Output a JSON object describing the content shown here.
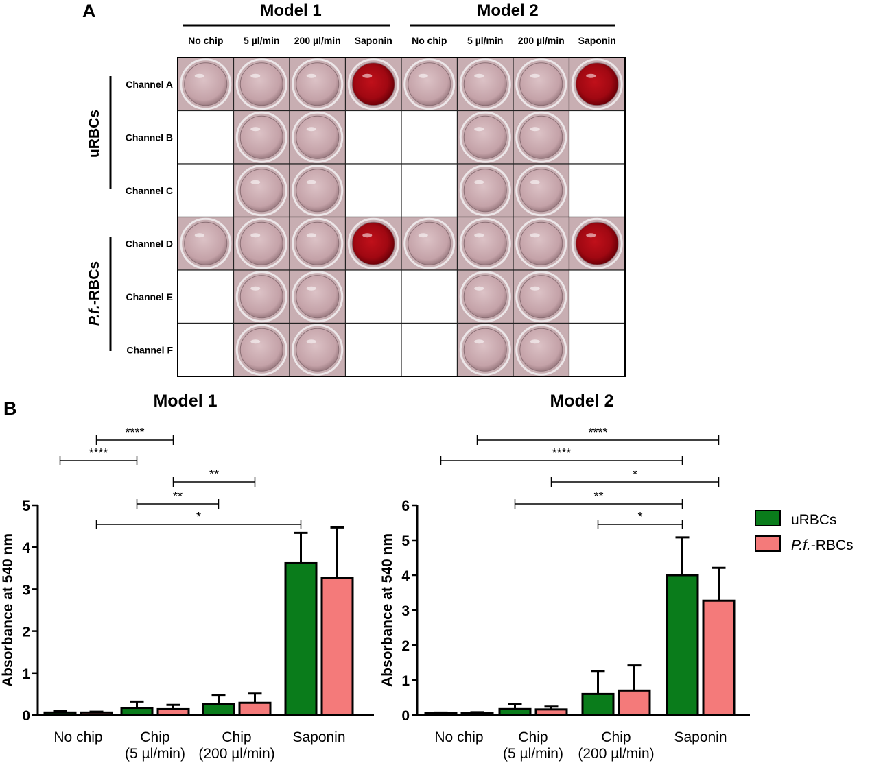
{
  "panel_a": {
    "label": "A",
    "models": [
      "Model 1",
      "Model 2"
    ],
    "columns": [
      "No chip",
      "5 µl/min",
      "200 µl/min",
      "Saponin"
    ],
    "groups": [
      {
        "label": "uRBCs",
        "italic_prefix": "",
        "rows": [
          "Channel A",
          "Channel B",
          "Channel C"
        ]
      },
      {
        "label": "-RBCs",
        "italic_prefix": "P.f.",
        "rows": [
          "Channel D",
          "Channel E",
          "Channel F"
        ]
      }
    ],
    "well_grid": {
      "legend": "0 = empty, 1 = pale well, 2 = red (hemolysed) well",
      "rows": [
        [
          1,
          1,
          1,
          2,
          1,
          1,
          1,
          2
        ],
        [
          0,
          1,
          1,
          0,
          0,
          1,
          1,
          0
        ],
        [
          0,
          1,
          1,
          0,
          0,
          1,
          1,
          0
        ],
        [
          1,
          1,
          1,
          2,
          1,
          1,
          1,
          2
        ],
        [
          0,
          1,
          1,
          0,
          0,
          1,
          1,
          0
        ],
        [
          0,
          1,
          1,
          0,
          0,
          1,
          1,
          0
        ]
      ]
    }
  },
  "panel_b": {
    "label": "B"
  },
  "legend": [
    {
      "name": "uRBCs",
      "italic_prefix": "",
      "color": "#0a7c1b"
    },
    {
      "name": "-RBCs",
      "italic_prefix": "P.f.",
      "color": "#f47a7a"
    }
  ],
  "chart_data": [
    {
      "type": "bar",
      "title": "Model 1",
      "ylabel": "Absorbance at 540 nm",
      "ylim": [
        0,
        5
      ],
      "yticks": [
        0,
        1,
        2,
        3,
        4,
        5
      ],
      "categories": [
        {
          "line1": "No chip",
          "line2": ""
        },
        {
          "line1": "Chip",
          "line2": "(5 µl/min)"
        },
        {
          "line1": "Chip",
          "line2": "(200 µl/min)"
        },
        {
          "line1": "Saponin",
          "line2": ""
        }
      ],
      "series": [
        {
          "name": "uRBCs",
          "values": [
            0.06,
            0.17,
            0.26,
            3.62
          ],
          "errors": [
            0.03,
            0.15,
            0.22,
            0.72
          ]
        },
        {
          "name": "P.f.-RBCs",
          "values": [
            0.06,
            0.14,
            0.29,
            3.27
          ],
          "errors": [
            0.02,
            0.1,
            0.22,
            1.2
          ]
        }
      ],
      "significance": [
        {
          "from": 1,
          "to": 3,
          "label": "****"
        },
        {
          "from": 0,
          "to": 2,
          "label": "****"
        },
        {
          "from": 3,
          "to": 5,
          "label": "**"
        },
        {
          "from": 2,
          "to": 4,
          "label": "**"
        },
        {
          "from": 1,
          "to": 6,
          "label": "*"
        }
      ]
    },
    {
      "type": "bar",
      "title": "Model 2",
      "ylabel": "Absorbance at 540 nm",
      "ylim": [
        0,
        6
      ],
      "yticks": [
        0,
        1,
        2,
        3,
        4,
        5,
        6
      ],
      "categories": [
        {
          "line1": "No chip",
          "line2": ""
        },
        {
          "line1": "Chip",
          "line2": "(5 µl/min)"
        },
        {
          "line1": "Chip",
          "line2": "(200 µl/min)"
        },
        {
          "line1": "Saponin",
          "line2": ""
        }
      ],
      "series": [
        {
          "name": "uRBCs",
          "values": [
            0.05,
            0.17,
            0.6,
            4.0
          ],
          "errors": [
            0.02,
            0.15,
            0.66,
            1.08
          ]
        },
        {
          "name": "P.f.-RBCs",
          "values": [
            0.06,
            0.16,
            0.7,
            3.27
          ],
          "errors": [
            0.02,
            0.08,
            0.72,
            0.94
          ]
        }
      ],
      "significance": [
        {
          "from": 1,
          "to": 7,
          "label": "****"
        },
        {
          "from": 0,
          "to": 6,
          "label": "****"
        },
        {
          "from": 3,
          "to": 7,
          "label": "*"
        },
        {
          "from": 2,
          "to": 6,
          "label": "**"
        },
        {
          "from": 4,
          "to": 6,
          "label": "*"
        }
      ]
    }
  ]
}
